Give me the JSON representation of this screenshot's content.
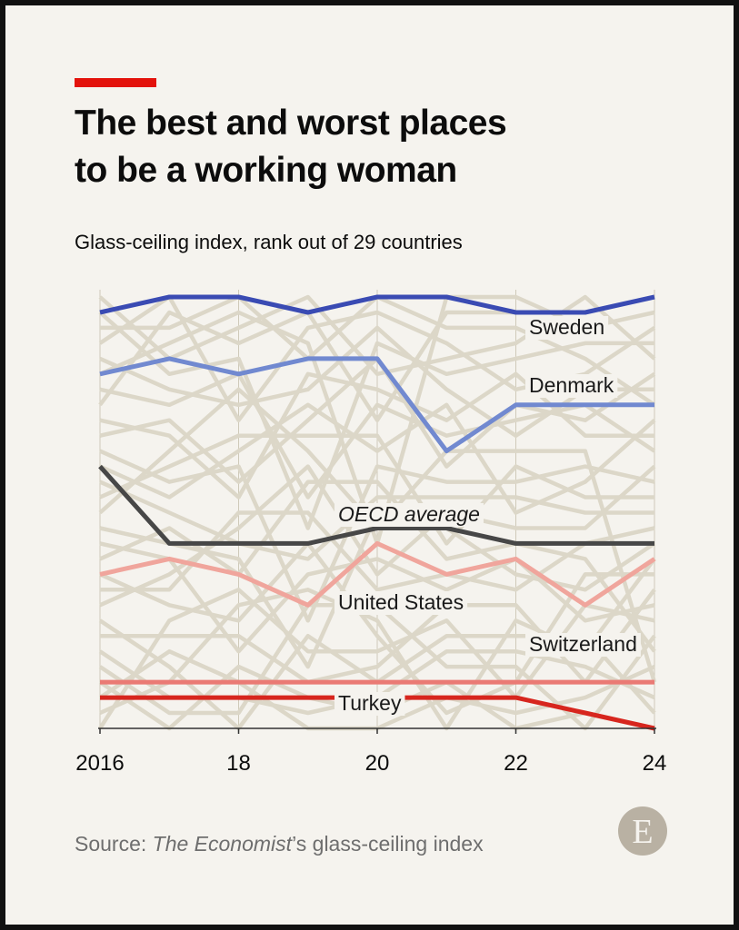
{
  "header": {
    "title_line1": "The best and worst places",
    "title_line2": "to be a working woman",
    "subtitle": "Glass-ceiling index, rank out of 29 countries"
  },
  "footer": {
    "source_prefix": "Source: ",
    "source_italic": "The Economist",
    "source_suffix": "’s glass-ceiling index",
    "logo_letter": "E"
  },
  "chart_data": {
    "type": "line",
    "title": "The best and worst places to be a working woman",
    "subtitle": "Glass-ceiling index, rank out of 29 countries",
    "x": [
      2016,
      2017,
      2018,
      2019,
      2020,
      2021,
      2022,
      2023,
      2024
    ],
    "x_tick_labels": [
      "2016",
      "18",
      "20",
      "22",
      "24"
    ],
    "x_ticks": [
      2016,
      2018,
      2020,
      2022,
      2024
    ],
    "xlim": [
      2016,
      2024
    ],
    "ylim": [
      1,
      29
    ],
    "y_inverted": true,
    "grid": "vertical",
    "colors": {
      "background_lines": "#dcd7c8",
      "grid": "#cfcab9",
      "axis": "#333333"
    },
    "series": [
      {
        "name": "Sweden",
        "color": "#3a4bb3",
        "values": [
          2,
          1,
          1,
          2,
          1,
          1,
          2,
          2,
          1
        ]
      },
      {
        "name": "Denmark",
        "color": "#7189d0",
        "values": [
          6,
          5,
          6,
          5,
          5,
          11,
          8,
          8,
          8
        ]
      },
      {
        "name": "OECD average",
        "color": "#474747",
        "italic": true,
        "values": [
          12,
          17,
          17,
          17,
          16,
          16,
          17,
          17,
          17
        ]
      },
      {
        "name": "United States",
        "color": "#f0a59c",
        "values": [
          19,
          18,
          19,
          21,
          17,
          19,
          18,
          21,
          18
        ]
      },
      {
        "name": "Switzerland",
        "color": "#ea7a74",
        "values": [
          26,
          26,
          26,
          26,
          26,
          26,
          26,
          26,
          26
        ]
      },
      {
        "name": "Turkey",
        "color": "#d7261e",
        "values": [
          27,
          27,
          27,
          27,
          27,
          27,
          27,
          28,
          29
        ]
      }
    ]
  }
}
